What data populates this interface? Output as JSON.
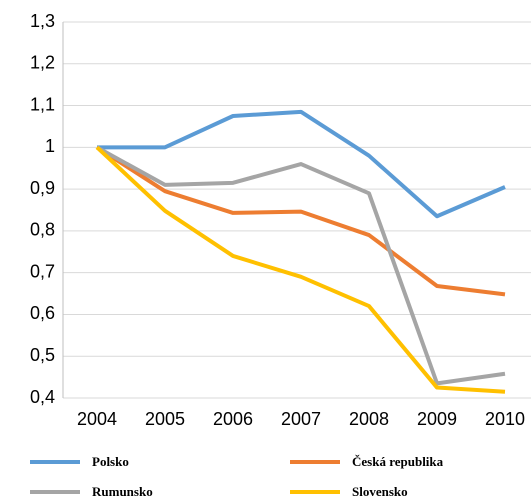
{
  "chart_data": {
    "type": "line",
    "categories": [
      "2004",
      "2005",
      "2006",
      "2007",
      "2008",
      "2009",
      "2010"
    ],
    "series": [
      {
        "name": "Polsko",
        "color": "#5b9bd5",
        "values": [
          1.0,
          1.0,
          1.075,
          1.085,
          0.98,
          0.835,
          0.905
        ]
      },
      {
        "name": "Česká republika",
        "color": "#ed7d31",
        "values": [
          1.0,
          0.895,
          0.843,
          0.846,
          0.79,
          0.668,
          0.648
        ]
      },
      {
        "name": "Rumunsko",
        "color": "#a5a5a5",
        "values": [
          1.0,
          0.91,
          0.915,
          0.96,
          0.89,
          0.435,
          0.458
        ]
      },
      {
        "name": "Slovensko",
        "color": "#ffc000",
        "values": [
          1.0,
          0.848,
          0.74,
          0.69,
          0.62,
          0.425,
          0.415
        ]
      }
    ],
    "ylim": [
      0.4,
      1.3
    ],
    "yticks": [
      {
        "value": 0.4,
        "label": "0,4"
      },
      {
        "value": 0.5,
        "label": "0,5"
      },
      {
        "value": 0.6,
        "label": "0,6"
      },
      {
        "value": 0.7,
        "label": "0,7"
      },
      {
        "value": 0.8,
        "label": "0,8"
      },
      {
        "value": 0.9,
        "label": "0,9"
      },
      1,
      {
        "value": 1.1,
        "label": "1,1"
      },
      {
        "value": 1.2,
        "label": "1,2"
      },
      {
        "value": 1.3,
        "label": "1,3"
      }
    ],
    "grid": true,
    "legend": "bottom"
  }
}
